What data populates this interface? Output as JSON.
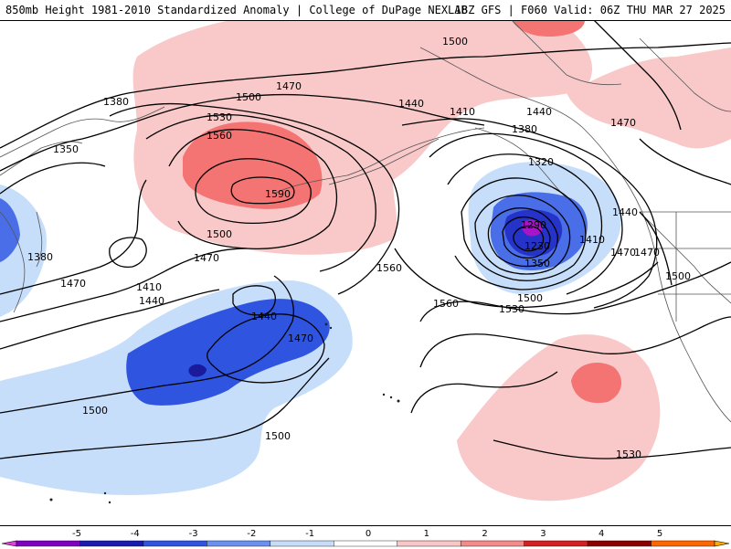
{
  "header": {
    "title": "850mb Height 1981-2010 Standardized Anomaly | College of DuPage NEXLAB",
    "valid": "18Z GFS | F060 Valid: 06Z THU MAR 27 2025"
  },
  "contour_labels": [
    {
      "id": "c1",
      "text": "1380"
    },
    {
      "id": "c2",
      "text": "1350"
    },
    {
      "id": "c3",
      "text": "1380"
    },
    {
      "id": "c4",
      "text": "1470"
    },
    {
      "id": "c5",
      "text": "1410"
    },
    {
      "id": "c6",
      "text": "1440"
    },
    {
      "id": "c7",
      "text": "1500"
    },
    {
      "id": "c8",
      "text": "1470"
    },
    {
      "id": "c9",
      "text": "1500"
    },
    {
      "id": "c10",
      "text": "1530"
    },
    {
      "id": "c11",
      "text": "1560"
    },
    {
      "id": "c12",
      "text": "1590"
    },
    {
      "id": "c13",
      "text": "1500"
    },
    {
      "id": "c14",
      "text": "1470"
    },
    {
      "id": "c15",
      "text": "1440"
    },
    {
      "id": "c16",
      "text": "1470"
    },
    {
      "id": "c17",
      "text": "1560"
    },
    {
      "id": "c18",
      "text": "1440"
    },
    {
      "id": "c19",
      "text": "1410"
    },
    {
      "id": "c20",
      "text": "1470"
    },
    {
      "id": "c21",
      "text": "1440"
    },
    {
      "id": "c22",
      "text": "1380"
    },
    {
      "id": "c23",
      "text": "1470"
    },
    {
      "id": "c24",
      "text": "1320"
    },
    {
      "id": "c25",
      "text": "1290"
    },
    {
      "id": "c26",
      "text": "1230"
    },
    {
      "id": "c27",
      "text": "1350"
    },
    {
      "id": "c28",
      "text": "1410"
    },
    {
      "id": "c29",
      "text": "1440"
    },
    {
      "id": "c30",
      "text": "1470"
    },
    {
      "id": "c31",
      "text": "1500"
    },
    {
      "id": "c32",
      "text": "1500"
    },
    {
      "id": "c33",
      "text": "1530"
    },
    {
      "id": "c34",
      "text": "1560"
    },
    {
      "id": "c35",
      "text": "1530"
    },
    {
      "id": "c36",
      "text": "1500"
    }
  ],
  "colorbar": {
    "ticks": [
      "-5",
      "-4",
      "-3",
      "-2",
      "-1",
      "0",
      "1",
      "2",
      "3",
      "4",
      "5"
    ],
    "colors": [
      "#e040e0",
      "#8000c0",
      "#1a1ab0",
      "#2f55e0",
      "#6a90f0",
      "#c6dcf7",
      "#ffffff",
      "#f9c6c6",
      "#f48a8a",
      "#d42020",
      "#8a0000",
      "#ff6600",
      "#ffaa00"
    ]
  },
  "legend_colors": {
    "pos1": "#f9c9c9",
    "pos2": "#f47373",
    "neg1": "#c6defa",
    "neg2": "#4a6ee8",
    "neg3": "#2533c8",
    "neg5": "#a814c8"
  }
}
